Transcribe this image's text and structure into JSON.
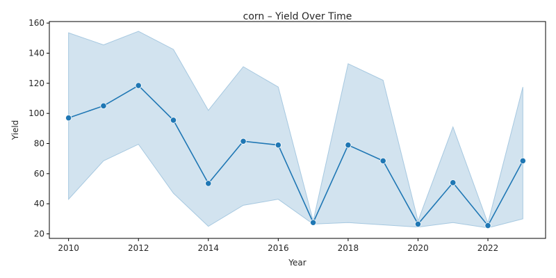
{
  "chart_data": {
    "type": "line",
    "title": "corn – Yield Over Time",
    "xlabel": "Year",
    "ylabel": "Yield",
    "xlim": [
      2009.45,
      2023.65
    ],
    "ylim": [
      17,
      161
    ],
    "x_ticks": [
      2010,
      2012,
      2014,
      2016,
      2018,
      2020,
      2022
    ],
    "y_ticks": [
      20,
      40,
      60,
      80,
      100,
      120,
      140,
      160
    ],
    "grid": false,
    "legend": "none",
    "series": [
      {
        "x": [
          2010,
          2011,
          2012,
          2013,
          2014,
          2015,
          2016,
          2017,
          2018,
          2019,
          2020,
          2021,
          2022,
          2023
        ],
        "values": [
          97,
          105,
          118.5,
          95.5,
          53.5,
          81.5,
          79,
          27.5,
          79,
          68.5,
          26.5,
          54,
          25.5,
          68.5
        ],
        "lower": [
          43,
          68.5,
          79.5,
          47,
          25,
          39,
          43,
          26.5,
          27.5,
          26,
          24.5,
          27.5,
          24,
          30
        ],
        "upper": [
          153.5,
          145.5,
          154.5,
          142.5,
          102,
          131,
          117.5,
          28.5,
          133,
          122,
          28.5,
          91,
          27,
          117.5
        ]
      }
    ],
    "colors": {
      "line": "#1f77b4",
      "band": "#a6c8e0"
    }
  }
}
